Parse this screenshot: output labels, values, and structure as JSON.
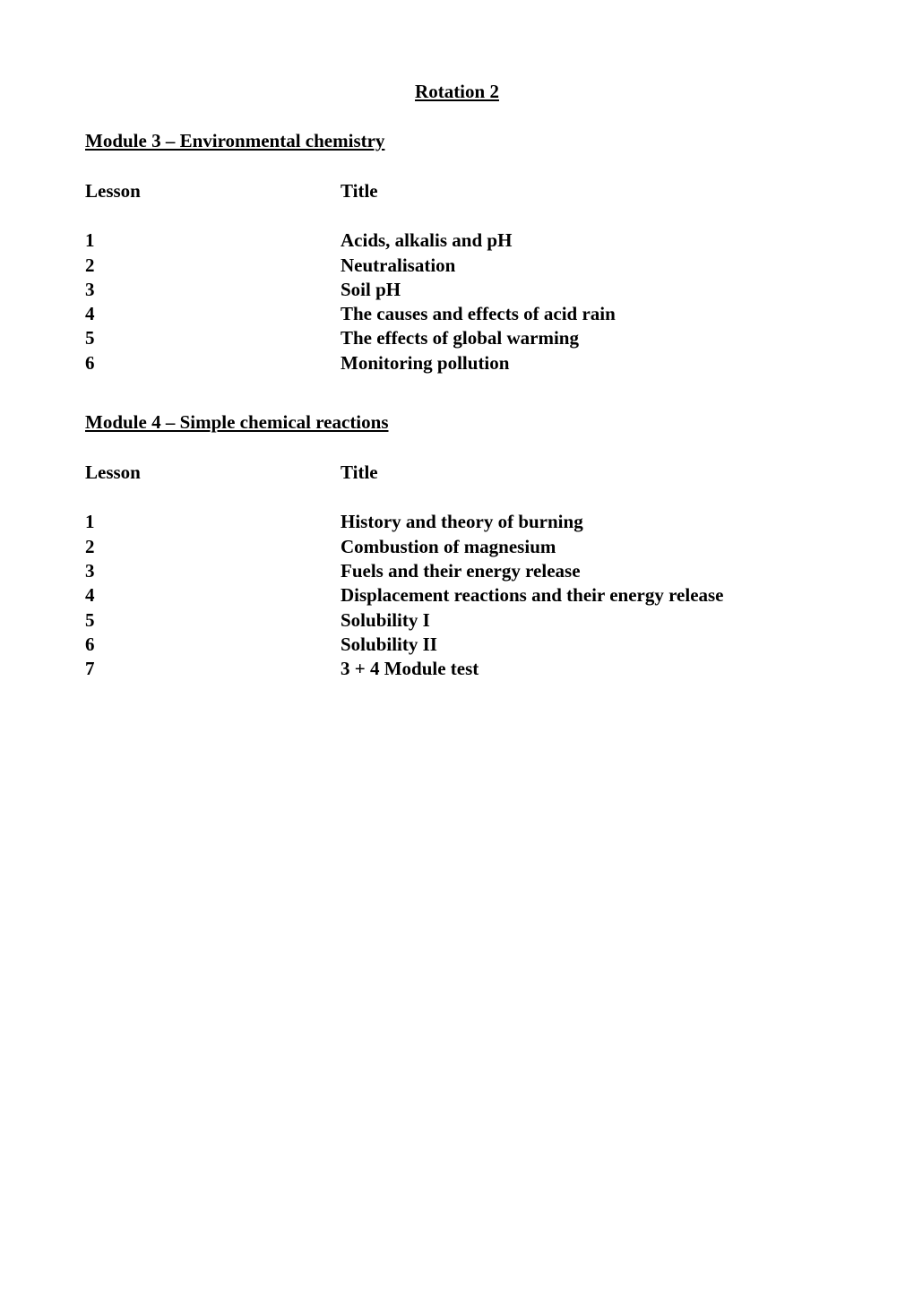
{
  "main_title": "Rotation 2",
  "modules": [
    {
      "heading": "Module 3 – Environmental chemistry",
      "header_lesson": "Lesson",
      "header_title": "Title",
      "lessons": [
        {
          "num": "1",
          "title": "Acids, alkalis and pH"
        },
        {
          "num": "2",
          "title": "Neutralisation"
        },
        {
          "num": "3",
          "title": "Soil pH"
        },
        {
          "num": "4",
          "title": "The causes and effects of acid rain"
        },
        {
          "num": "5",
          "title": "The effects of global warming"
        },
        {
          "num": "6",
          "title": "Monitoring pollution"
        }
      ]
    },
    {
      "heading": "Module 4 – Simple chemical reactions",
      "header_lesson": "Lesson",
      "header_title": "Title",
      "lessons": [
        {
          "num": "1",
          "title": "History and theory of burning"
        },
        {
          "num": "2",
          "title": "Combustion of magnesium"
        },
        {
          "num": "3",
          "title": "Fuels and their energy release"
        },
        {
          "num": "4",
          "title": "Displacement reactions and their energy release"
        },
        {
          "num": "5",
          "title": "Solubility I"
        },
        {
          "num": "6",
          "title": "Solubility II"
        },
        {
          "num": "7",
          "title": "3 + 4 Module test"
        }
      ]
    }
  ]
}
